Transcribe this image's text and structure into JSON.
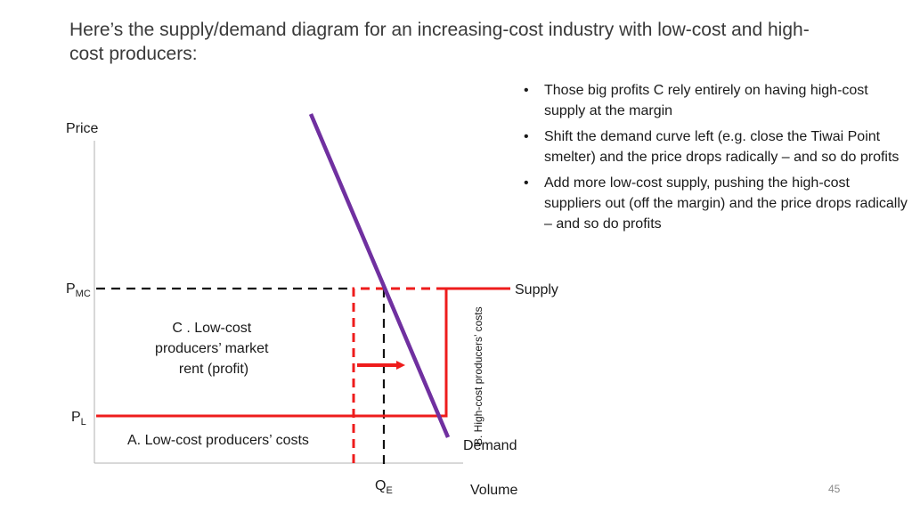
{
  "slide": {
    "title": "Here’s the supply/demand diagram for an increasing-cost industry with low-cost and high-cost producers:",
    "page_number": "45"
  },
  "bullets": [
    "Those big profits C rely entirely on having high-cost supply at the margin",
    "Shift the demand curve left (e.g. close the Tiwai Point smelter) and the price drops radically – and so do profits",
    "Add more low-cost supply, pushing the high-cost suppliers out (off the margin) and the price drops radically – and so do profits"
  ],
  "diagram": {
    "y_axis_label": "Price",
    "x_axis_label": "Volume",
    "p_mc_main": "P",
    "p_mc_sub": "MC",
    "p_l_main": "P",
    "p_l_sub": "L",
    "q_e_main": "Q",
    "q_e_sub": "E",
    "supply_label": "Supply",
    "demand_label": "Demand",
    "area_c_lines": [
      "C .   Low-cost",
      "producers’ market",
      "rent (profit)"
    ],
    "area_a_label": "A.  Low-cost producers’ costs",
    "area_b_label": "B. High-cost producers’ costs",
    "colors": {
      "supply": "#ee1c1c",
      "demand": "#7030a0",
      "dashed_black": "#111111",
      "axis": "#b0b0b0"
    }
  }
}
